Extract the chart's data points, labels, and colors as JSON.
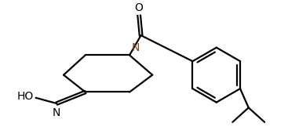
{
  "bg_color": "#ffffff",
  "atom_color": "#000000",
  "N_color": "#8B4513",
  "line_color": "#000000",
  "line_width": 1.6,
  "fig_width": 3.67,
  "fig_height": 1.71,
  "dpi": 100,
  "xlim": [
    0.0,
    7.5
  ],
  "ylim": [
    0.5,
    3.8
  ]
}
